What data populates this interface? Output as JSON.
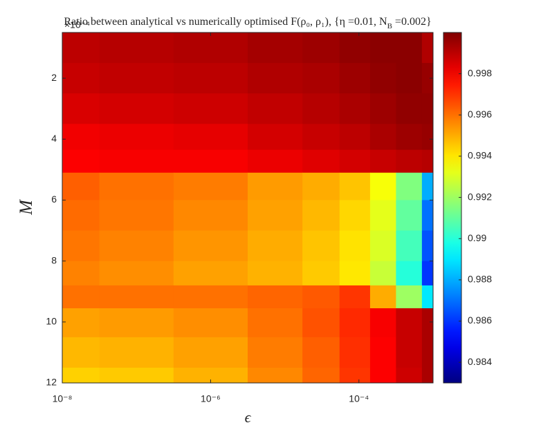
{
  "chart_data": {
    "type": "heatmap",
    "title": "Ratio between analytical vs numerically optimised F(ρ₀, ρ₁), {η =0.01, N_B =0.002}",
    "x_label": "ϵ",
    "y_label": "M",
    "y_multiplier": "×10⁻⁴",
    "x_scale": "log",
    "y_direction": "reverse",
    "colormap": "jet",
    "x": [
      1e-08,
      1e-07,
      1e-06,
      1e-05,
      3e-05,
      0.0001,
      0.0002,
      0.0005,
      0.001
    ],
    "y": [
      1,
      2,
      3,
      4,
      4.7,
      5.5,
      6.5,
      7.5,
      8.5,
      9.1,
      10,
      11,
      12
    ],
    "values": [
      [
        0.999,
        0.9991,
        0.9992,
        0.9994,
        0.9995,
        0.9997,
        0.9998,
        0.9998,
        0.9992
      ],
      [
        0.9988,
        0.9989,
        0.999,
        0.9992,
        0.9993,
        0.9995,
        0.9997,
        0.9998,
        0.9996
      ],
      [
        0.9985,
        0.9986,
        0.9987,
        0.9989,
        0.9991,
        0.9993,
        0.9995,
        0.9997,
        0.9997
      ],
      [
        0.9981,
        0.9982,
        0.9983,
        0.9986,
        0.9988,
        0.999,
        0.9993,
        0.9995,
        0.9996
      ],
      [
        0.9979,
        0.998,
        0.998,
        0.9982,
        0.9984,
        0.9986,
        0.9988,
        0.999,
        0.9991
      ],
      [
        0.9963,
        0.996,
        0.9958,
        0.9953,
        0.995,
        0.9946,
        0.9935,
        0.9915,
        0.988
      ],
      [
        0.9961,
        0.9959,
        0.9956,
        0.9952,
        0.9948,
        0.9943,
        0.9932,
        0.991,
        0.987
      ],
      [
        0.9959,
        0.9957,
        0.9954,
        0.995,
        0.9946,
        0.9941,
        0.993,
        0.9905,
        0.9865
      ],
      [
        0.9957,
        0.9955,
        0.9952,
        0.9949,
        0.9945,
        0.994,
        0.9927,
        0.99,
        0.986
      ],
      [
        0.996,
        0.996,
        0.996,
        0.9962,
        0.9964,
        0.997,
        0.995,
        0.992,
        0.989
      ],
      [
        0.9952,
        0.9953,
        0.9955,
        0.996,
        0.9965,
        0.9972,
        0.998,
        0.9988,
        0.9993
      ],
      [
        0.9948,
        0.9949,
        0.9952,
        0.9958,
        0.9963,
        0.9971,
        0.9979,
        0.9988,
        0.9993
      ],
      [
        0.9944,
        0.9945,
        0.9949,
        0.9956,
        0.9962,
        0.997,
        0.9979,
        0.9987,
        0.9993
      ]
    ],
    "xlim": [
      1e-08,
      0.001
    ],
    "xticks": [
      {
        "value": 1e-08,
        "label": "10⁻⁸"
      },
      {
        "value": 1e-06,
        "label": "10⁻⁶"
      },
      {
        "value": 0.0001,
        "label": "10⁻⁴"
      }
    ],
    "ylim": [
      0.5,
      12
    ],
    "yticks": [
      2,
      4,
      6,
      8,
      10,
      12
    ],
    "clim": [
      0.983,
      1.0
    ],
    "cticks": [
      0.984,
      0.986,
      0.988,
      0.99,
      0.992,
      0.994,
      0.996,
      0.998
    ]
  }
}
